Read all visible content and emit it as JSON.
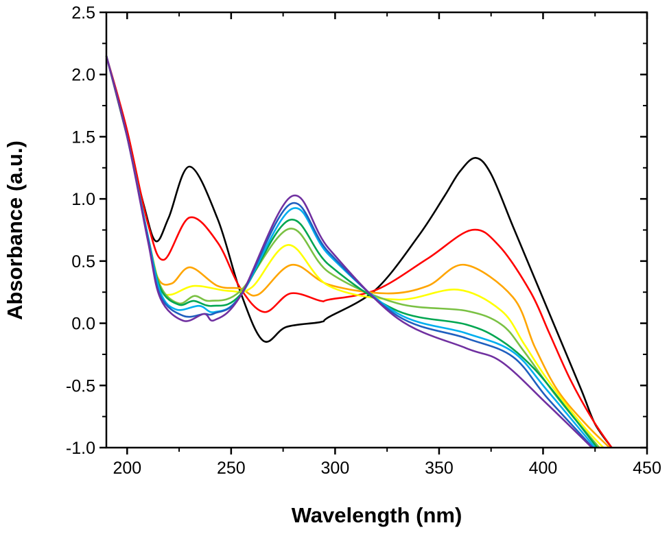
{
  "chart_data": {
    "type": "line",
    "title": "",
    "xlabel": "Wavelength (nm)",
    "ylabel": "Absorbance (a.u.)",
    "xlim": [
      190,
      450
    ],
    "ylim": [
      -1.0,
      2.5
    ],
    "x_ticks": [
      200,
      250,
      300,
      350,
      400,
      450
    ],
    "x_tick_labels": [
      "200",
      "250",
      "300",
      "350",
      "400",
      "450"
    ],
    "y_ticks": [
      -1.0,
      -0.5,
      0.0,
      0.5,
      1.0,
      1.5,
      2.0,
      2.5
    ],
    "y_tick_labels": [
      "-1.0",
      "-0.5",
      "0.0",
      "0.5",
      "1.0",
      "1.5",
      "2.0",
      "2.5"
    ],
    "grid": false,
    "legend": "none",
    "series": [
      {
        "color": "#000000",
        "points": [
          [
            190,
            2.15
          ],
          [
            200,
            1.5
          ],
          [
            208,
            0.95
          ],
          [
            213.8,
            0.66
          ],
          [
            220,
            0.85
          ],
          [
            230,
            1.26
          ],
          [
            243.5,
            0.84
          ],
          [
            254.5,
            0.25
          ],
          [
            265.4,
            -0.14
          ],
          [
            276.5,
            -0.03
          ],
          [
            293,
            0.01
          ],
          [
            297,
            0.05
          ],
          [
            319.5,
            0.27
          ],
          [
            340,
            0.7
          ],
          [
            352.5,
            1.02
          ],
          [
            360,
            1.22
          ],
          [
            367.6,
            1.33
          ],
          [
            375,
            1.2
          ],
          [
            385.5,
            0.78
          ],
          [
            396,
            0.36
          ],
          [
            407,
            -0.08
          ],
          [
            418.5,
            -0.54
          ],
          [
            425,
            -0.81
          ],
          [
            433,
            -1.0
          ]
        ]
      },
      {
        "color": "#ff0000",
        "points": [
          [
            190,
            2.15
          ],
          [
            200,
            1.55
          ],
          [
            210,
            0.8
          ],
          [
            217.6,
            0.51
          ],
          [
            230,
            0.85
          ],
          [
            243.5,
            0.65
          ],
          [
            254.5,
            0.28
          ],
          [
            266,
            0.09
          ],
          [
            278.6,
            0.24
          ],
          [
            293,
            0.18
          ],
          [
            297,
            0.19
          ],
          [
            320,
            0.27
          ],
          [
            344.5,
            0.52
          ],
          [
            365.7,
            0.75
          ],
          [
            379,
            0.62
          ],
          [
            394,
            0.25
          ],
          [
            403,
            -0.08
          ],
          [
            413,
            -0.45
          ],
          [
            424,
            -0.78
          ],
          [
            433,
            -1.0
          ]
        ]
      },
      {
        "color": "#ffa500",
        "points": [
          [
            190,
            2.15
          ],
          [
            200,
            1.5
          ],
          [
            210,
            0.7
          ],
          [
            214.9,
            0.36
          ],
          [
            221.5,
            0.32
          ],
          [
            230.3,
            0.45
          ],
          [
            243.5,
            0.3
          ],
          [
            254.5,
            0.28
          ],
          [
            263,
            0.23
          ],
          [
            279.2,
            0.47
          ],
          [
            297,
            0.31
          ],
          [
            324.8,
            0.24
          ],
          [
            344.5,
            0.3
          ],
          [
            362.4,
            0.47
          ],
          [
            385.5,
            0.21
          ],
          [
            396,
            -0.19
          ],
          [
            407,
            -0.54
          ],
          [
            420.5,
            -0.81
          ],
          [
            432,
            -1.0
          ]
        ]
      },
      {
        "color": "#ffff00",
        "points": [
          [
            190,
            2.15
          ],
          [
            200,
            1.5
          ],
          [
            210,
            0.7
          ],
          [
            216,
            0.29
          ],
          [
            221,
            0.23
          ],
          [
            232.4,
            0.3
          ],
          [
            249,
            0.26
          ],
          [
            260,
            0.29
          ],
          [
            277.6,
            0.63
          ],
          [
            297,
            0.3
          ],
          [
            330,
            0.19
          ],
          [
            359,
            0.27
          ],
          [
            380,
            0.1
          ],
          [
            391,
            -0.17
          ],
          [
            402,
            -0.45
          ],
          [
            418.5,
            -0.81
          ],
          [
            429,
            -1.0
          ]
        ]
      },
      {
        "color": "#7ac143",
        "points": [
          [
            190,
            2.15
          ],
          [
            200,
            1.5
          ],
          [
            210,
            0.7
          ],
          [
            216,
            0.3
          ],
          [
            224.8,
            0.16
          ],
          [
            232.4,
            0.22
          ],
          [
            240,
            0.18
          ],
          [
            254.5,
            0.26
          ],
          [
            278,
            0.76
          ],
          [
            297,
            0.41
          ],
          [
            330,
            0.16
          ],
          [
            363,
            0.1
          ],
          [
            380,
            -0.01
          ],
          [
            391,
            -0.23
          ],
          [
            407,
            -0.6
          ],
          [
            427,
            -1.0
          ]
        ]
      },
      {
        "color": "#00a651",
        "points": [
          [
            190,
            2.15
          ],
          [
            200,
            1.5
          ],
          [
            210,
            0.7
          ],
          [
            216,
            0.28
          ],
          [
            224.8,
            0.15
          ],
          [
            232,
            0.18
          ],
          [
            241,
            0.14
          ],
          [
            254.5,
            0.23
          ],
          [
            278,
            0.83
          ],
          [
            297,
            0.47
          ],
          [
            330,
            0.1
          ],
          [
            363,
            -0.01
          ],
          [
            380,
            -0.14
          ],
          [
            396,
            -0.37
          ],
          [
            413,
            -0.72
          ],
          [
            426,
            -1.0
          ]
        ]
      },
      {
        "color": "#00aeef",
        "points": [
          [
            190,
            2.15
          ],
          [
            200,
            1.5
          ],
          [
            210,
            0.7
          ],
          [
            216,
            0.25
          ],
          [
            223.7,
            0.11
          ],
          [
            234.7,
            0.14
          ],
          [
            242,
            0.09
          ],
          [
            254.5,
            0.22
          ],
          [
            279.2,
            0.92
          ],
          [
            297,
            0.55
          ],
          [
            330,
            0.08
          ],
          [
            363,
            -0.08
          ],
          [
            385.5,
            -0.23
          ],
          [
            402,
            -0.54
          ],
          [
            425,
            -1.0
          ]
        ]
      },
      {
        "color": "#1f5fbf",
        "points": [
          [
            190,
            2.15
          ],
          [
            200,
            1.5
          ],
          [
            210,
            0.68
          ],
          [
            216,
            0.22
          ],
          [
            227,
            0.06
          ],
          [
            236.9,
            0.075
          ],
          [
            242,
            0.08
          ],
          [
            254.5,
            0.22
          ],
          [
            278.6,
            0.96
          ],
          [
            297,
            0.57
          ],
          [
            330,
            0.06
          ],
          [
            363,
            -0.12
          ],
          [
            385.5,
            -0.27
          ],
          [
            402,
            -0.6
          ],
          [
            424,
            -1.0
          ]
        ]
      },
      {
        "color": "#7030a0",
        "points": [
          [
            190,
            2.15
          ],
          [
            200,
            1.5
          ],
          [
            210,
            0.66
          ],
          [
            216,
            0.2
          ],
          [
            227,
            0.02
          ],
          [
            237,
            0.075
          ],
          [
            242,
            0.025
          ],
          [
            254.5,
            0.22
          ],
          [
            279,
            1.02
          ],
          [
            297,
            0.6
          ],
          [
            330,
            0.04
          ],
          [
            363,
            -0.2
          ],
          [
            380,
            -0.31
          ],
          [
            402,
            -0.65
          ],
          [
            423.5,
            -1.0
          ]
        ]
      }
    ]
  }
}
